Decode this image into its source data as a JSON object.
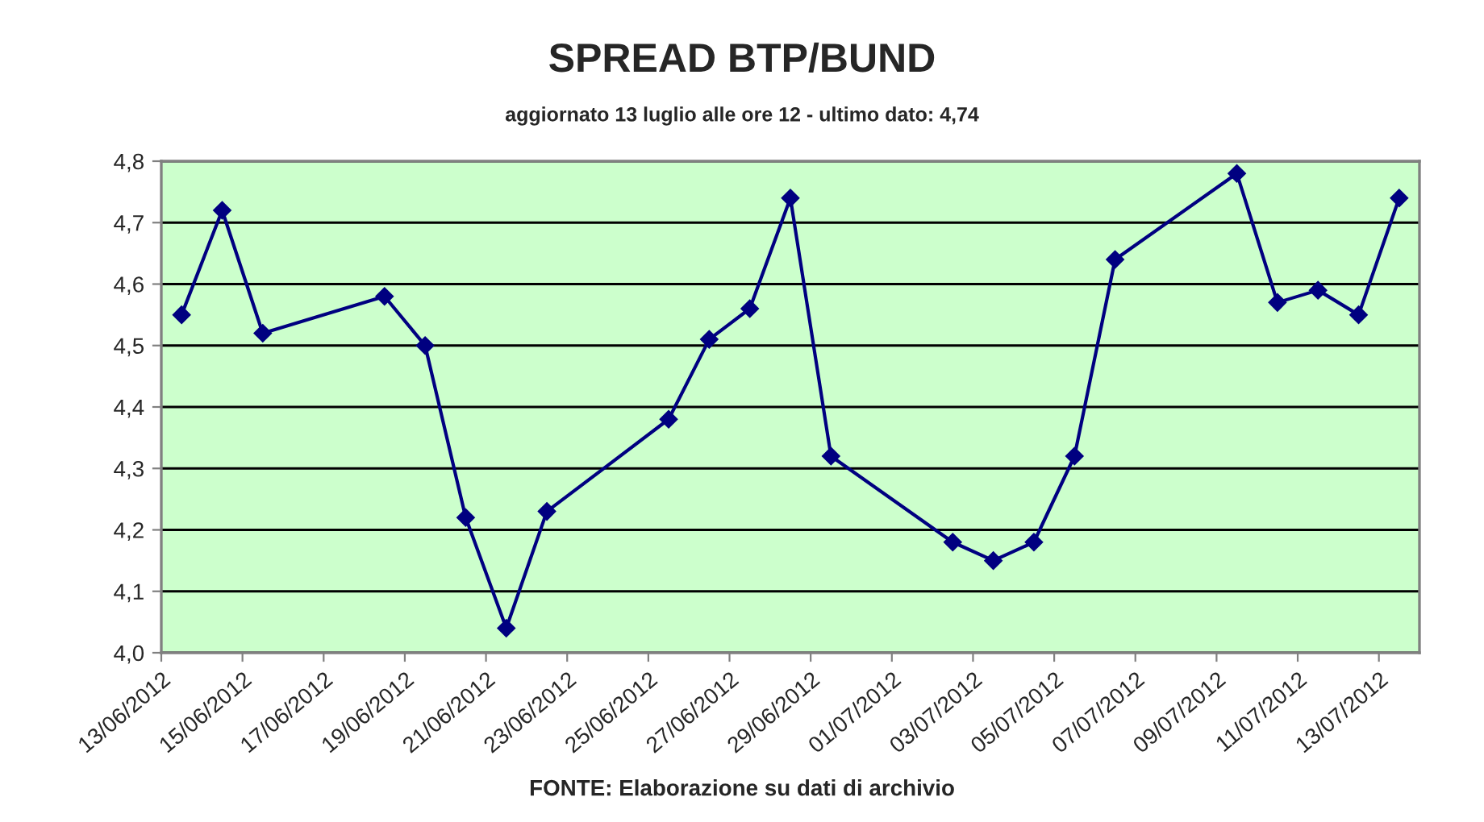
{
  "chart_data": {
    "type": "line",
    "title": "SPREAD BTP/BUND",
    "subtitle": "aggiornato 13 luglio alle ore 12 - ultimo dato: 4,74",
    "annotations": [
      "FONTE: Elaborazione su dati di archivio"
    ],
    "x": [
      "2012-06-13T12:00",
      "2012-06-14T12:00",
      "2012-06-15T12:00",
      "2012-06-18T12:00",
      "2012-06-19T12:00",
      "2012-06-20T12:00",
      "2012-06-21T12:00",
      "2012-06-22T12:00",
      "2012-06-25T12:00",
      "2012-06-26T12:00",
      "2012-06-27T12:00",
      "2012-06-28T12:00",
      "2012-06-29T12:00",
      "2012-07-02T12:00",
      "2012-07-03T12:00",
      "2012-07-04T12:00",
      "2012-07-05T12:00",
      "2012-07-06T12:00",
      "2012-07-09T12:00",
      "2012-07-10T12:00",
      "2012-07-11T12:00",
      "2012-07-12T12:00",
      "2012-07-13T12:00"
    ],
    "series": [
      {
        "color": "#000080",
        "values": [
          4.55,
          4.72,
          4.52,
          4.58,
          4.5,
          4.22,
          4.04,
          4.23,
          4.38,
          4.51,
          4.56,
          4.74,
          4.32,
          4.18,
          4.15,
          4.18,
          4.32,
          4.64,
          4.78,
          4.57,
          4.59,
          4.55,
          4.74
        ]
      }
    ],
    "xlim": [
      "2012-06-13",
      "2012-07-14"
    ],
    "xticks": [
      {
        "value": "2012-06-13",
        "label": "13/06/2012"
      },
      {
        "value": "2012-06-15",
        "label": "15/06/2012"
      },
      {
        "value": "2012-06-17",
        "label": "17/06/2012"
      },
      {
        "value": "2012-06-19",
        "label": "19/06/2012"
      },
      {
        "value": "2012-06-21",
        "label": "21/06/2012"
      },
      {
        "value": "2012-06-23",
        "label": "23/06/2012"
      },
      {
        "value": "2012-06-25",
        "label": "25/06/2012"
      },
      {
        "value": "2012-06-27",
        "label": "27/06/2012"
      },
      {
        "value": "2012-06-29",
        "label": "29/06/2012"
      },
      {
        "value": "2012-07-01",
        "label": "01/07/2012"
      },
      {
        "value": "2012-07-03",
        "label": "03/07/2012"
      },
      {
        "value": "2012-07-05",
        "label": "05/07/2012"
      },
      {
        "value": "2012-07-07",
        "label": "07/07/2012"
      },
      {
        "value": "2012-07-09",
        "label": "09/07/2012"
      },
      {
        "value": "2012-07-11",
        "label": "11/07/2012"
      },
      {
        "value": "2012-07-13",
        "label": "13/07/2012"
      }
    ],
    "ylim": [
      4.0,
      4.8
    ],
    "yticks": [
      {
        "value": 4.0,
        "label": "4,0"
      },
      {
        "value": 4.1,
        "label": "4,1"
      },
      {
        "value": 4.2,
        "label": "4,2"
      },
      {
        "value": 4.3,
        "label": "4,3"
      },
      {
        "value": 4.4,
        "label": "4,4"
      },
      {
        "value": 4.5,
        "label": "4,5"
      },
      {
        "value": 4.6,
        "label": "4,6"
      },
      {
        "value": 4.7,
        "label": "4,7"
      },
      {
        "value": 4.8,
        "label": "4,8"
      }
    ],
    "grid": "y",
    "marker": "diamond",
    "line_style": "solid"
  }
}
